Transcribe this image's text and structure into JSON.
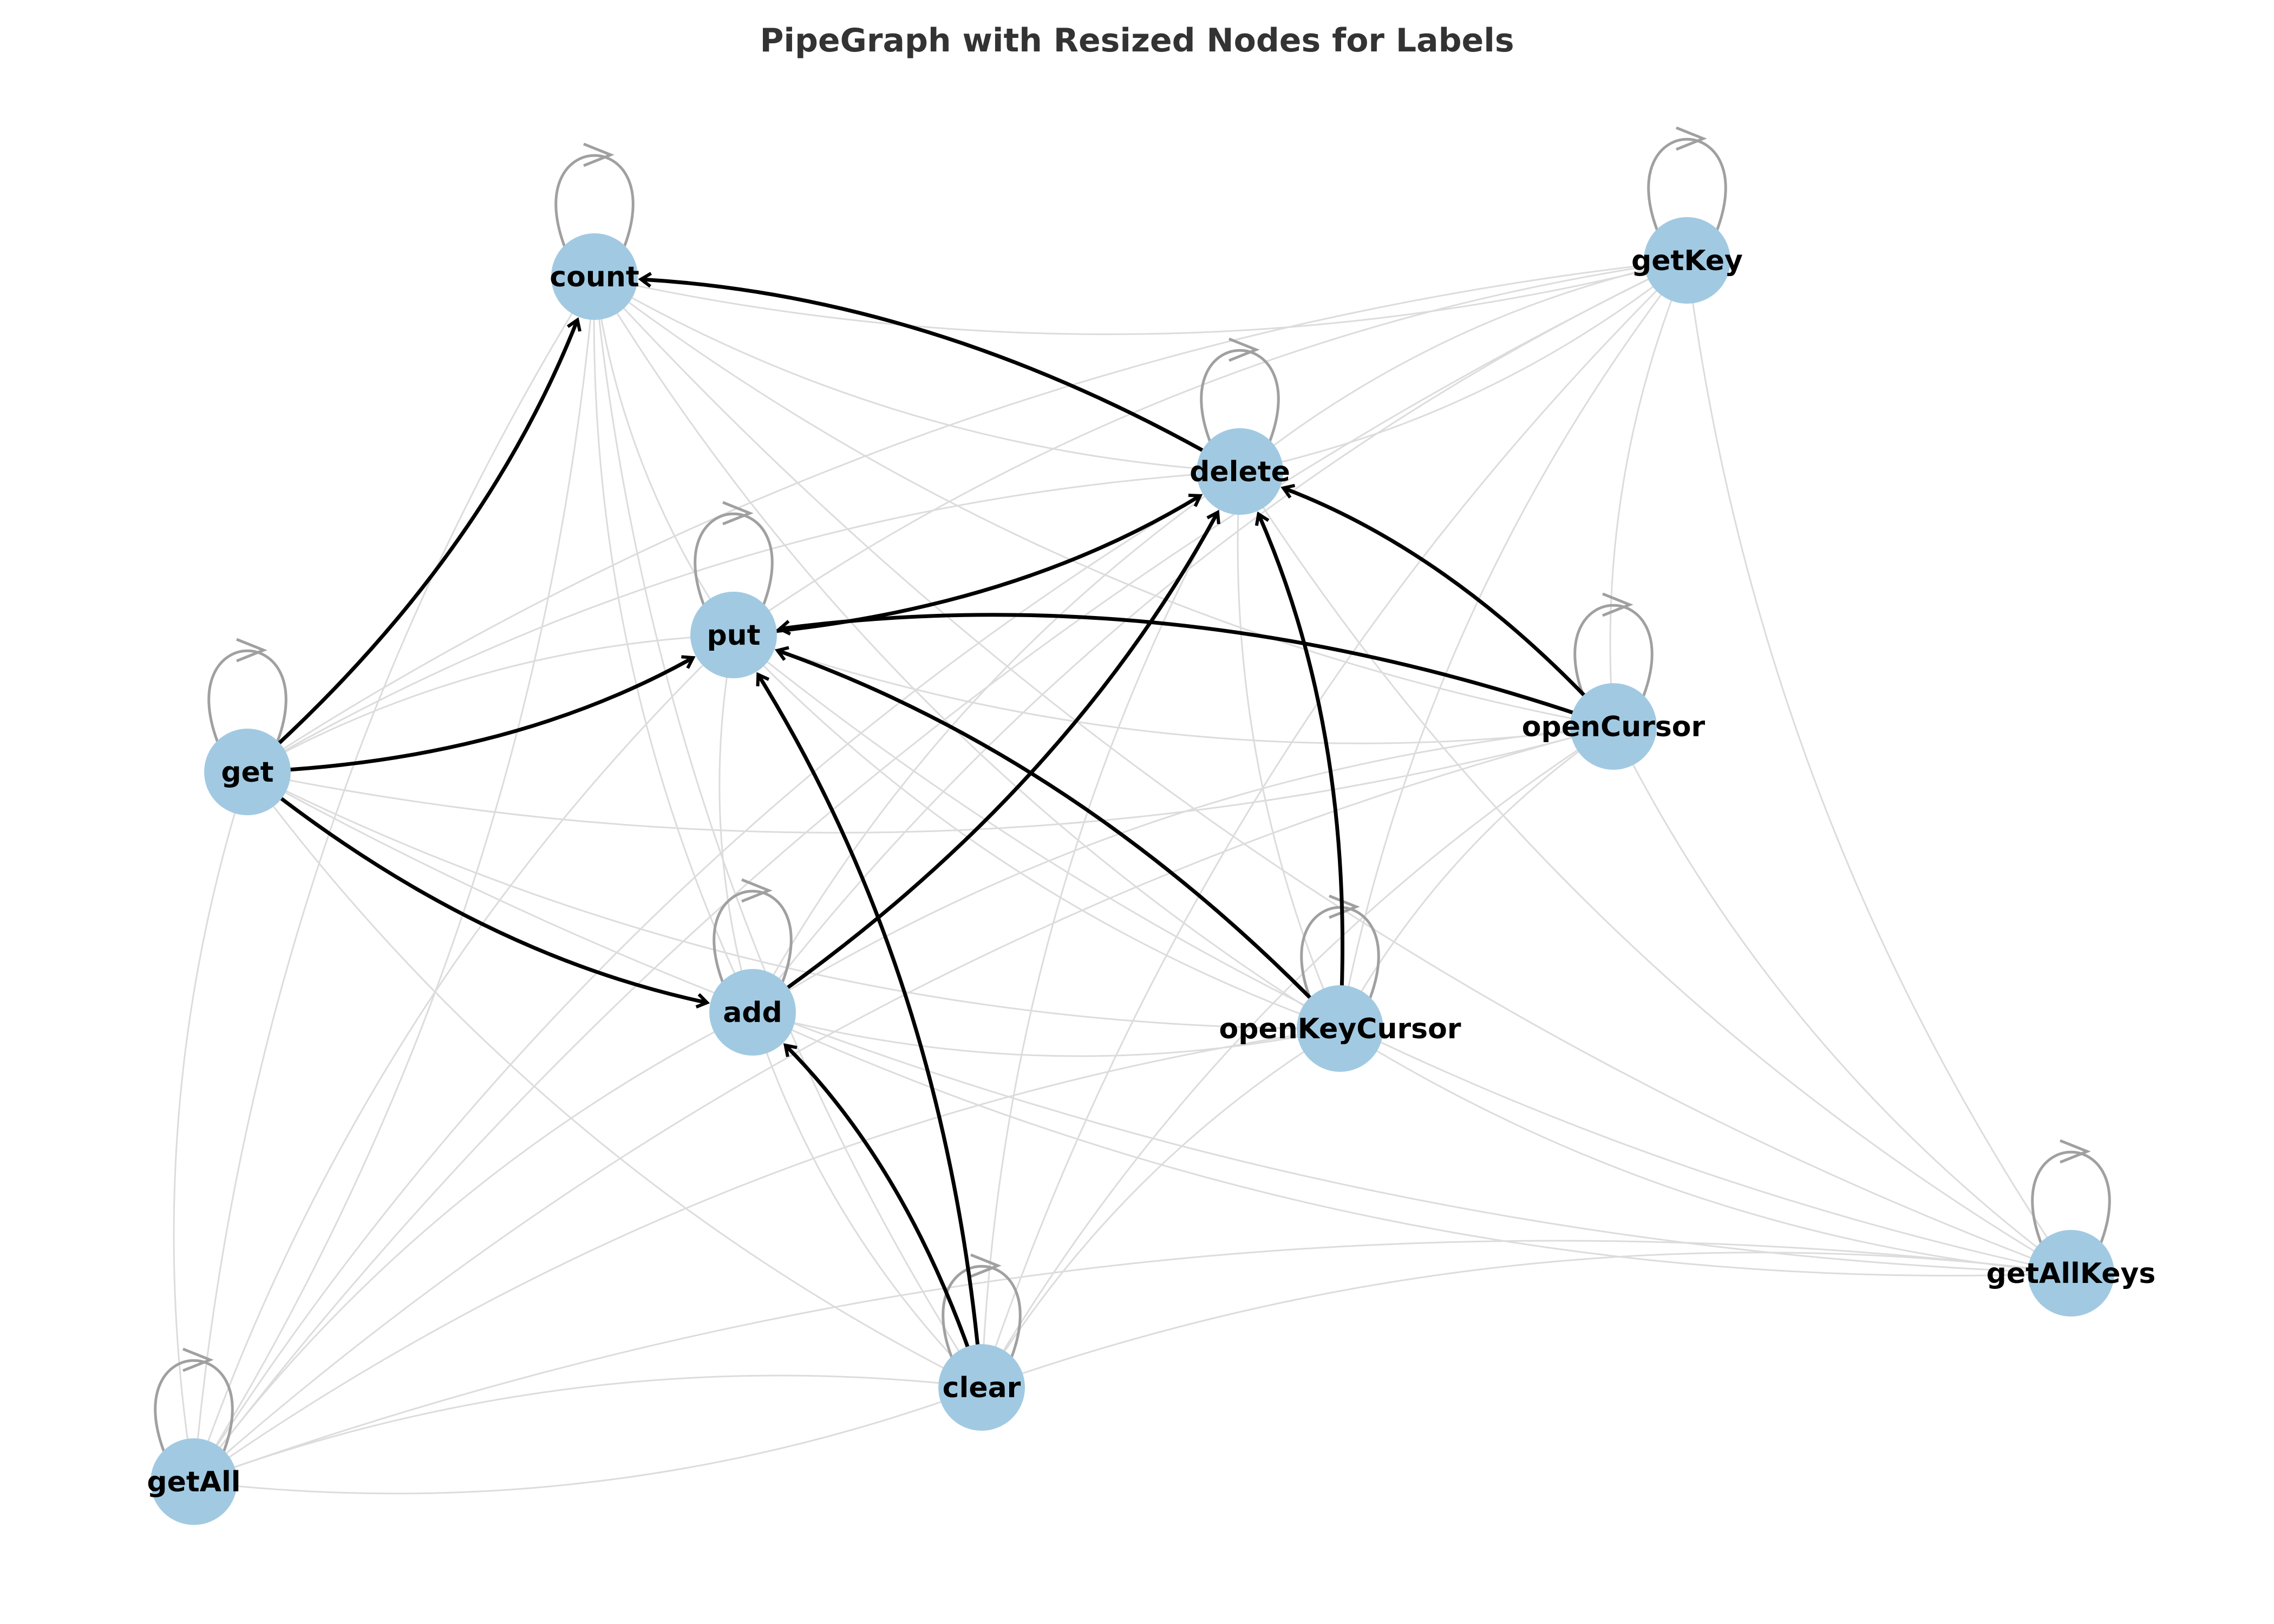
{
  "diagram": {
    "title": "PipeGraph with Resized Nodes for Labels",
    "colors": {
      "node_fill": "#a1cae2",
      "bold_edge": "#000000",
      "light_edge": "#dcdcdc",
      "self_loop": "#a0a0a0",
      "title": "#333333"
    },
    "nodes": [
      {
        "id": "count",
        "label": "count"
      },
      {
        "id": "getKey",
        "label": "getKey"
      },
      {
        "id": "delete",
        "label": "delete"
      },
      {
        "id": "put",
        "label": "put"
      },
      {
        "id": "get",
        "label": "get"
      },
      {
        "id": "openCursor",
        "label": "openCursor"
      },
      {
        "id": "add",
        "label": "add"
      },
      {
        "id": "openKeyCursor",
        "label": "openKeyCursor"
      },
      {
        "id": "getAllKeys",
        "label": "getAllKeys"
      },
      {
        "id": "clear",
        "label": "clear"
      },
      {
        "id": "getAll",
        "label": "getAll"
      }
    ],
    "bold_edges": [
      {
        "source": "get",
        "target": "count"
      },
      {
        "source": "delete",
        "target": "count"
      },
      {
        "source": "get",
        "target": "put"
      },
      {
        "source": "openCursor",
        "target": "put"
      },
      {
        "source": "openCursor",
        "target": "delete"
      },
      {
        "source": "put",
        "target": "delete"
      },
      {
        "source": "add",
        "target": "delete"
      },
      {
        "source": "openKeyCursor",
        "target": "delete"
      },
      {
        "source": "openKeyCursor",
        "target": "put"
      },
      {
        "source": "clear",
        "target": "put"
      },
      {
        "source": "clear",
        "target": "add"
      },
      {
        "source": "get",
        "target": "add"
      }
    ],
    "light_edges": [
      [
        "count",
        "getKey"
      ],
      [
        "count",
        "put"
      ],
      [
        "count",
        "add"
      ],
      [
        "count",
        "openCursor"
      ],
      [
        "count",
        "openKeyCursor"
      ],
      [
        "count",
        "getAllKeys"
      ],
      [
        "count",
        "clear"
      ],
      [
        "count",
        "getAll"
      ],
      [
        "count",
        "getAll"
      ],
      [
        "count",
        "delete"
      ],
      [
        "getKey",
        "delete"
      ],
      [
        "getKey",
        "put"
      ],
      [
        "getKey",
        "get"
      ],
      [
        "getKey",
        "add"
      ],
      [
        "getKey",
        "openCursor"
      ],
      [
        "getKey",
        "openKeyCursor"
      ],
      [
        "getKey",
        "getAllKeys"
      ],
      [
        "getKey",
        "clear"
      ],
      [
        "getKey",
        "getAll"
      ],
      [
        "getKey",
        "delete"
      ],
      [
        "delete",
        "get"
      ],
      [
        "delete",
        "openKeyCursor"
      ],
      [
        "delete",
        "clear"
      ],
      [
        "delete",
        "getAll"
      ],
      [
        "delete",
        "getAllKeys"
      ],
      [
        "delete",
        "add"
      ],
      [
        "put",
        "add"
      ],
      [
        "put",
        "openKeyCursor"
      ],
      [
        "put",
        "getAll"
      ],
      [
        "put",
        "getAllKeys"
      ],
      [
        "put",
        "openCursor"
      ],
      [
        "put",
        "get"
      ],
      [
        "get",
        "openCursor"
      ],
      [
        "get",
        "openKeyCursor"
      ],
      [
        "get",
        "getAllKeys"
      ],
      [
        "get",
        "clear"
      ],
      [
        "get",
        "getAll"
      ],
      [
        "openCursor",
        "add"
      ],
      [
        "openCursor",
        "openKeyCursor"
      ],
      [
        "openCursor",
        "getAllKeys"
      ],
      [
        "openCursor",
        "clear"
      ],
      [
        "openCursor",
        "getAll"
      ],
      [
        "add",
        "openKeyCursor"
      ],
      [
        "add",
        "getAllKeys"
      ],
      [
        "add",
        "getAll"
      ],
      [
        "add",
        "clear"
      ],
      [
        "openKeyCursor",
        "getAllKeys"
      ],
      [
        "openKeyCursor",
        "clear"
      ],
      [
        "openKeyCursor",
        "getAll"
      ],
      [
        "getAllKeys",
        "clear"
      ],
      [
        "getAllKeys",
        "getAll"
      ],
      [
        "clear",
        "getAll"
      ],
      [
        "clear",
        "getAll"
      ]
    ]
  }
}
